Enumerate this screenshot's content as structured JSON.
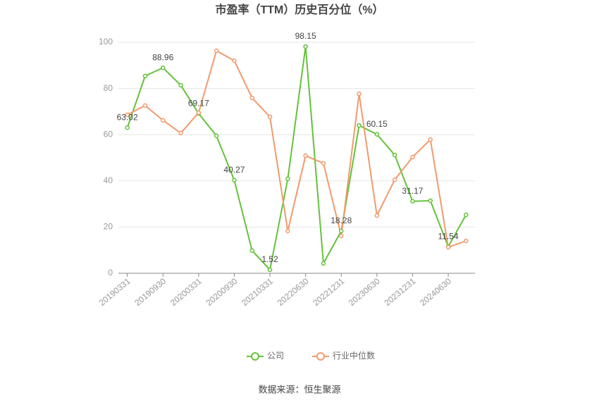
{
  "chart_data": {
    "type": "line",
    "title": "市盈率（TTM）历史百分位（%）",
    "source": "数据来源：恒生聚源",
    "categories": [
      "20190331",
      null,
      "20190930",
      null,
      "20200331",
      null,
      "20200930",
      null,
      "20210331",
      null,
      "20220630",
      null,
      "20221231",
      null,
      "20230630",
      null,
      "20231231",
      null,
      "20240630",
      null
    ],
    "series": [
      {
        "name": "公司",
        "color": "#64c23a",
        "values": [
          63.02,
          85.4,
          88.96,
          81.4,
          69.17,
          59.5,
          40.27,
          9.8,
          1.52,
          40.9,
          98.15,
          4.3,
          18.28,
          64,
          60.15,
          51.2,
          31.17,
          31.4,
          11.54,
          25.3
        ],
        "value_labels": [
          "63.02",
          null,
          "88.96",
          null,
          "69.17",
          null,
          "40.27",
          null,
          "1.52",
          null,
          "98.15",
          null,
          "18.28",
          null,
          "60.15",
          null,
          "31.17",
          null,
          "11.54",
          null
        ]
      },
      {
        "name": "行业中位数",
        "color": "#f29a6c",
        "values": [
          68.6,
          72.6,
          66.2,
          60.7,
          69.5,
          96.3,
          92,
          75.9,
          67.7,
          18.3,
          50.9,
          47.6,
          16.2,
          77.7,
          25,
          40.5,
          50.3,
          57.9,
          11.3,
          14
        ]
      }
    ],
    "ylim": [
      0,
      100
    ],
    "yticks": [
      0,
      20,
      40,
      60,
      80,
      100
    ],
    "grid": true
  }
}
